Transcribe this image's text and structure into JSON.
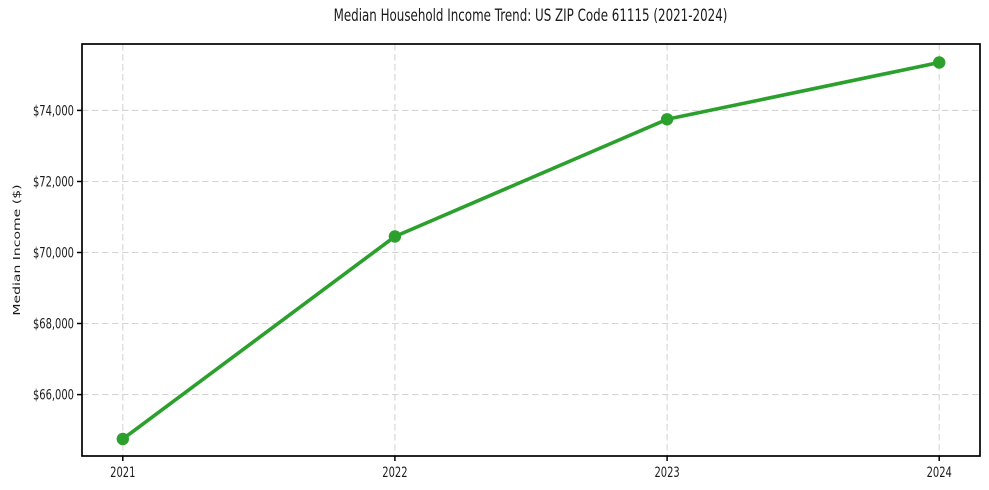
{
  "chart_data": {
    "type": "line",
    "title": "Median Household Income Trend: US ZIP Code 61115 (2021-2024)",
    "xlabel": "",
    "ylabel": "Median Income ($)",
    "x": [
      2021,
      2022,
      2023,
      2024
    ],
    "x_tick_labels": [
      "2021",
      "2022",
      "2023",
      "2024"
    ],
    "values": [
      64750,
      70450,
      73750,
      75350
    ],
    "y_ticks": [
      66000,
      68000,
      70000,
      72000,
      74000
    ],
    "y_tick_labels": [
      "$66,000",
      "$68,000",
      "$70,000",
      "$72,000",
      "$74,000"
    ],
    "xlim": [
      2020.85,
      2024.15
    ],
    "ylim": [
      64270,
      75870
    ],
    "grid": "dashed",
    "legend": "none",
    "marker": "circle",
    "colors": {
      "line": "#2ca02c",
      "marker": "#2ca02c",
      "grid": "#d5d5d5",
      "axis": "#000000",
      "text": "#1a1a1a",
      "background": "#ffffff"
    }
  }
}
